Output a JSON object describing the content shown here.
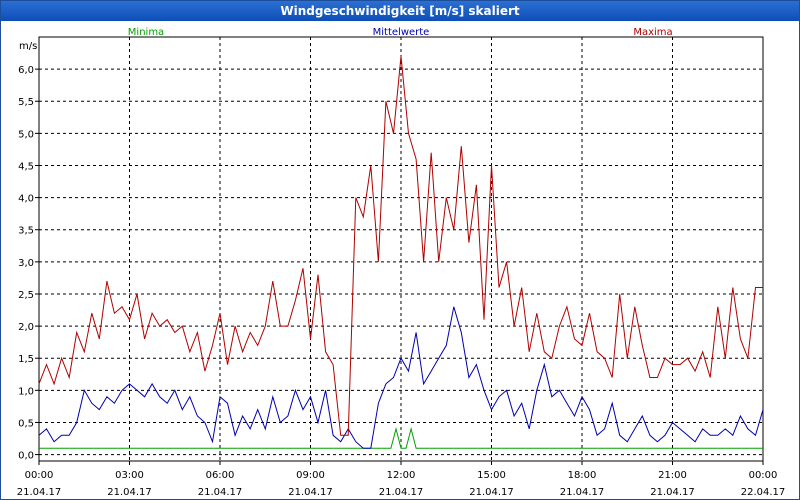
{
  "window": {
    "title": "Windgeschwindigkeit [m/s] skaliert"
  },
  "chart_data": {
    "type": "line",
    "title": "Windgeschwindigkeit [m/s] skaliert",
    "ylabel": "m/s",
    "ylim": [
      -0.1,
      6.5
    ],
    "xlim": [
      0,
      72
    ],
    "grid": true,
    "legend_placement": "top",
    "yticks": [
      {
        "v": 0.0,
        "label": "0,0"
      },
      {
        "v": 0.5,
        "label": "0,5"
      },
      {
        "v": 1.0,
        "label": "1,0"
      },
      {
        "v": 1.5,
        "label": "1,5"
      },
      {
        "v": 2.0,
        "label": "2,0"
      },
      {
        "v": 2.5,
        "label": "2,5"
      },
      {
        "v": 3.0,
        "label": "3,0"
      },
      {
        "v": 3.5,
        "label": "3,5"
      },
      {
        "v": 4.0,
        "label": "4,0"
      },
      {
        "v": 4.5,
        "label": "4,5"
      },
      {
        "v": 5.0,
        "label": "5,0"
      },
      {
        "v": 5.5,
        "label": "5,5"
      },
      {
        "v": 6.0,
        "label": "6,0"
      }
    ],
    "xticks": [
      {
        "v": 0,
        "time": "00:00",
        "date": "21.04.17"
      },
      {
        "v": 9,
        "time": "03:00",
        "date": "21.04.17"
      },
      {
        "v": 18,
        "time": "06:00",
        "date": "21.04.17"
      },
      {
        "v": 27,
        "time": "09:00",
        "date": "21.04.17"
      },
      {
        "v": 36,
        "time": "12:00",
        "date": "21.04.17"
      },
      {
        "v": 45,
        "time": "15:00",
        "date": "21.04.17"
      },
      {
        "v": 54,
        "time": "18:00",
        "date": "21.04.17"
      },
      {
        "v": 63,
        "time": "21:00",
        "date": "21.04.17"
      },
      {
        "v": 72,
        "time": "00:00",
        "date": "22.04.17"
      }
    ],
    "series": [
      {
        "name": "Minima",
        "color": "#00a000",
        "x": [
          0,
          35.0,
          35.5,
          36.0,
          36.5,
          37.0,
          37.5,
          72
        ],
        "values": [
          0.1,
          0.1,
          0.4,
          0.1,
          0.1,
          0.4,
          0.1,
          0.1
        ]
      },
      {
        "name": "Mittelwerte",
        "color": "#0000b0",
        "x": [
          0,
          0.75,
          1.5,
          2.25,
          3,
          3.75,
          4.5,
          5.25,
          6,
          6.75,
          7.5,
          8.25,
          9,
          9.75,
          10.5,
          11.25,
          12,
          12.75,
          13.5,
          14.25,
          15,
          15.75,
          16.5,
          17.25,
          18,
          18.75,
          19.5,
          20.25,
          21,
          21.75,
          22.5,
          23.25,
          24,
          24.75,
          25.5,
          26.25,
          27,
          27.75,
          28.5,
          29.25,
          30,
          30.75,
          31.5,
          32.25,
          33,
          33.75,
          34.5,
          35.25,
          36,
          36.75,
          37.5,
          38.25,
          39,
          39.75,
          40.5,
          41.25,
          42,
          42.75,
          43.5,
          44.25,
          45,
          45.75,
          46.5,
          47.25,
          48,
          48.75,
          49.5,
          50.25,
          51,
          51.75,
          52.5,
          53.25,
          54,
          54.75,
          55.5,
          56.25,
          57,
          57.75,
          58.5,
          59.25,
          60,
          60.75,
          61.5,
          62.25,
          63,
          63.75,
          64.5,
          65.25,
          66,
          66.75,
          67.5,
          68.25,
          69,
          69.75,
          70.5,
          71.25,
          72
        ],
        "values": [
          0.3,
          0.4,
          0.2,
          0.3,
          0.3,
          0.5,
          1.0,
          0.8,
          0.7,
          0.9,
          0.8,
          1.0,
          1.1,
          1.0,
          0.9,
          1.1,
          0.9,
          0.8,
          1.0,
          0.7,
          0.9,
          0.6,
          0.5,
          0.2,
          0.9,
          0.8,
          0.3,
          0.6,
          0.4,
          0.7,
          0.4,
          0.9,
          0.5,
          0.6,
          1.0,
          0.7,
          0.9,
          0.5,
          1.0,
          0.3,
          0.2,
          0.4,
          0.2,
          0.1,
          0.1,
          0.8,
          1.1,
          1.2,
          1.5,
          1.3,
          1.9,
          1.1,
          1.3,
          1.5,
          1.7,
          2.3,
          1.9,
          1.2,
          1.4,
          1.0,
          0.7,
          0.9,
          1.0,
          0.6,
          0.8,
          0.4,
          1.0,
          1.4,
          0.9,
          1.0,
          0.8,
          0.6,
          0.9,
          0.7,
          0.3,
          0.4,
          0.8,
          0.3,
          0.2,
          0.4,
          0.6,
          0.3,
          0.2,
          0.3,
          0.5,
          0.4,
          0.3,
          0.2,
          0.4,
          0.3,
          0.3,
          0.4,
          0.3,
          0.6,
          0.4,
          0.3,
          0.7
        ]
      },
      {
        "name": "Maxima",
        "color": "#b00000",
        "x": [
          0,
          0.75,
          1.5,
          2.25,
          3,
          3.75,
          4.5,
          5.25,
          6,
          6.75,
          7.5,
          8.25,
          9,
          9.75,
          10.5,
          11.25,
          12,
          12.75,
          13.5,
          14.25,
          15,
          15.75,
          16.5,
          17.25,
          18,
          18.75,
          19.5,
          20.25,
          21,
          21.75,
          22.5,
          23.25,
          24,
          24.75,
          25.5,
          26.25,
          27,
          27.75,
          28.5,
          29.25,
          30,
          30.75,
          31.5,
          32.25,
          33,
          33.75,
          34.5,
          35.25,
          36,
          36.75,
          37.5,
          38.25,
          39,
          39.75,
          40.5,
          41.25,
          42,
          42.75,
          43.5,
          44.25,
          45,
          45.75,
          46.5,
          47.25,
          48,
          48.75,
          49.5,
          50.25,
          51,
          51.75,
          52.5,
          53.25,
          54,
          54.75,
          55.5,
          56.25,
          57,
          57.75,
          58.5,
          59.25,
          60,
          60.75,
          61.5,
          62.25,
          63,
          63.75,
          64.5,
          65.25,
          66,
          66.75,
          67.5,
          68.25,
          69,
          69.75,
          70.5,
          71.25,
          72
        ],
        "values": [
          1.1,
          1.4,
          1.1,
          1.5,
          1.2,
          1.9,
          1.6,
          2.2,
          1.8,
          2.7,
          2.2,
          2.3,
          2.1,
          2.5,
          1.8,
          2.2,
          2.0,
          2.1,
          1.9,
          2.0,
          1.6,
          1.9,
          1.3,
          1.7,
          2.2,
          1.4,
          2.0,
          1.6,
          1.9,
          1.7,
          2.0,
          2.7,
          2.0,
          2.0,
          2.4,
          2.9,
          1.8,
          2.8,
          1.6,
          1.4,
          0.3,
          0.3,
          4.0,
          3.7,
          4.5,
          3.0,
          5.5,
          5.0,
          6.2,
          5.0,
          4.6,
          3.0,
          4.7,
          3.0,
          4.0,
          3.5,
          4.8,
          3.3,
          4.2,
          2.1,
          4.5,
          2.6,
          3.0,
          2.0,
          2.6,
          1.6,
          2.2,
          1.6,
          1.5,
          2.0,
          2.3,
          1.8,
          1.7,
          2.2,
          1.6,
          1.5,
          1.2,
          2.5,
          1.5,
          2.3,
          1.7,
          1.2,
          1.2,
          1.5,
          1.4,
          1.4,
          1.5,
          1.3,
          1.6,
          1.2,
          2.3,
          1.5,
          2.6,
          1.8,
          1.5,
          2.6,
          2.6
        ]
      }
    ]
  }
}
